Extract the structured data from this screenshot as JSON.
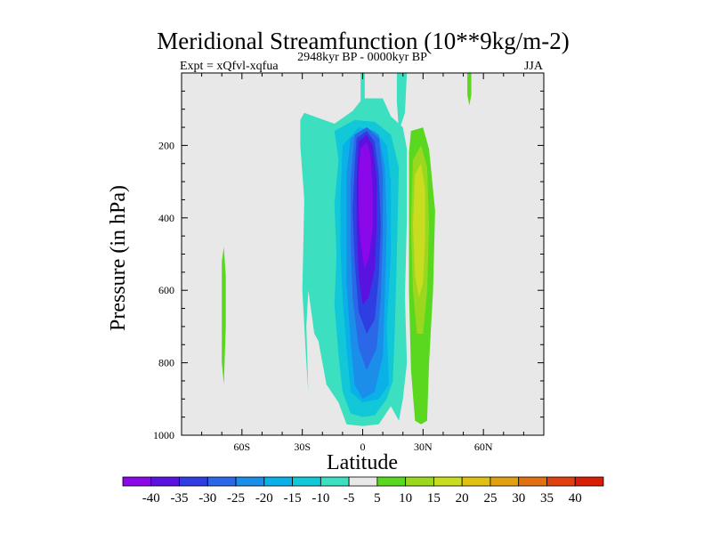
{
  "chart_data": {
    "type": "contour",
    "title": "Meridional Streamfunction (10**9kg/m-2)",
    "left_label": "Expt = xQfvl-xqfua",
    "center_label": "2948kyr BP - 0000kyr BP",
    "right_label": "JJA",
    "xlabel": "Latitude",
    "ylabel": "Pressure (in hPa)",
    "xlim": [
      -90,
      90
    ],
    "ylim": [
      0,
      1000
    ],
    "y_inverted": true,
    "x_ticks": [
      {
        "value": -60,
        "label": "60S"
      },
      {
        "value": -30,
        "label": "30S"
      },
      {
        "value": 0,
        "label": "0"
      },
      {
        "value": 30,
        "label": "30N"
      },
      {
        "value": 60,
        "label": "60N"
      }
    ],
    "y_ticks": [
      {
        "value": 200,
        "label": "200"
      },
      {
        "value": 400,
        "label": "400"
      },
      {
        "value": 600,
        "label": "600"
      },
      {
        "value": 800,
        "label": "800"
      },
      {
        "value": 1000,
        "label": "1000"
      }
    ],
    "colorbar": {
      "levels": [
        "-40",
        "-35",
        "-30",
        "-25",
        "-20",
        "-15",
        "-10",
        "-5",
        "5",
        "10",
        "15",
        "20",
        "25",
        "30",
        "35",
        "40"
      ],
      "colors": [
        "#8b08e8",
        "#5a12e0",
        "#2f3ee0",
        "#2a68e8",
        "#1a8ee8",
        "#0ab0e8",
        "#12c8d8",
        "#3cdfc0",
        "#e8e8e8",
        "#5ad820",
        "#9ad820",
        "#c8dc20",
        "#e0c010",
        "#e0a010",
        "#e07010",
        "#e04010",
        "#d81e05"
      ]
    },
    "regions": [
      {
        "name": "band-mid-60S-weak-positive",
        "level_index": 9,
        "points": [
          [
            -69,
            480
          ],
          [
            -68,
            560
          ],
          [
            -68,
            700
          ],
          [
            -69,
            860
          ],
          [
            -70,
            800
          ],
          [
            -70,
            600
          ],
          [
            -70,
            520
          ]
        ]
      },
      {
        "name": "band-north-narrow-positive",
        "level_index": 9,
        "points": [
          [
            52,
            0
          ],
          [
            54,
            0
          ],
          [
            54,
            60
          ],
          [
            53,
            90
          ],
          [
            52,
            60
          ]
        ]
      },
      {
        "name": "band-upper-left-neg-narrow",
        "level_index": 7,
        "points": [
          [
            -1,
            0
          ],
          [
            1,
            0
          ],
          [
            1,
            80
          ],
          [
            -1,
            80
          ]
        ]
      },
      {
        "name": "band-upper-right-neg-narrow",
        "level_index": 7,
        "points": [
          [
            17,
            0
          ],
          [
            22,
            0
          ],
          [
            21,
            110
          ],
          [
            18,
            160
          ],
          [
            17,
            80
          ]
        ]
      },
      {
        "name": "cell-weak-neg-outer",
        "level_index": 7,
        "points": [
          [
            -29,
            110
          ],
          [
            -14,
            140
          ],
          [
            -5,
            105
          ],
          [
            0,
            70
          ],
          [
            10,
            70
          ],
          [
            14,
            120
          ],
          [
            20,
            150
          ],
          [
            22,
            210
          ],
          [
            22,
            400
          ],
          [
            21,
            620
          ],
          [
            22,
            800
          ],
          [
            20,
            900
          ],
          [
            18,
            960
          ],
          [
            14,
            920
          ],
          [
            8,
            970
          ],
          [
            0,
            975
          ],
          [
            -8,
            970
          ],
          [
            -12,
            910
          ],
          [
            -18,
            860
          ],
          [
            -22,
            740
          ],
          [
            -24,
            720
          ],
          [
            -26,
            640
          ],
          [
            -27,
            600
          ],
          [
            -28,
            700
          ],
          [
            -27,
            880
          ],
          [
            -28,
            800
          ],
          [
            -30,
            600
          ],
          [
            -29,
            350
          ],
          [
            -31,
            200
          ],
          [
            -31,
            130
          ]
        ]
      },
      {
        "name": "cell-neg-10",
        "level_index": 6,
        "points": [
          [
            -14,
            160
          ],
          [
            -4,
            130
          ],
          [
            6,
            135
          ],
          [
            14,
            170
          ],
          [
            18,
            260
          ],
          [
            17,
            500
          ],
          [
            16,
            700
          ],
          [
            15,
            850
          ],
          [
            12,
            900
          ],
          [
            6,
            945
          ],
          [
            0,
            950
          ],
          [
            -6,
            940
          ],
          [
            -10,
            880
          ],
          [
            -12,
            780
          ],
          [
            -14,
            640
          ],
          [
            -13,
            500
          ],
          [
            -14,
            360
          ],
          [
            -12,
            240
          ]
        ]
      },
      {
        "name": "cell-neg-15",
        "level_index": 5,
        "points": [
          [
            -10,
            200
          ],
          [
            -2,
            150
          ],
          [
            6,
            160
          ],
          [
            12,
            200
          ],
          [
            14,
            300
          ],
          [
            14,
            500
          ],
          [
            12,
            700
          ],
          [
            13,
            860
          ],
          [
            8,
            900
          ],
          [
            0,
            910
          ],
          [
            -6,
            880
          ],
          [
            -8,
            760
          ],
          [
            -10,
            620
          ],
          [
            -11,
            480
          ],
          [
            -11,
            340
          ]
        ]
      },
      {
        "name": "cell-neg-20",
        "level_index": 4,
        "points": [
          [
            -6,
            180
          ],
          [
            2,
            150
          ],
          [
            8,
            170
          ],
          [
            11,
            260
          ],
          [
            12,
            420
          ],
          [
            11,
            620
          ],
          [
            10,
            780
          ],
          [
            6,
            880
          ],
          [
            0,
            900
          ],
          [
            -4,
            860
          ],
          [
            -6,
            740
          ],
          [
            -8,
            580
          ],
          [
            -8,
            420
          ],
          [
            -8,
            280
          ]
        ]
      },
      {
        "name": "cell-neg-25",
        "level_index": 3,
        "points": [
          [
            -4,
            170
          ],
          [
            2,
            150
          ],
          [
            8,
            180
          ],
          [
            10,
            280
          ],
          [
            10,
            440
          ],
          [
            9,
            620
          ],
          [
            7,
            760
          ],
          [
            2,
            820
          ],
          [
            -2,
            760
          ],
          [
            -5,
            620
          ],
          [
            -6,
            460
          ],
          [
            -6,
            300
          ]
        ]
      },
      {
        "name": "cell-neg-30",
        "level_index": 2,
        "points": [
          [
            -3,
            180
          ],
          [
            2,
            160
          ],
          [
            6,
            190
          ],
          [
            8,
            280
          ],
          [
            9,
            420
          ],
          [
            8,
            560
          ],
          [
            6,
            680
          ],
          [
            2,
            720
          ],
          [
            -2,
            660
          ],
          [
            -4,
            520
          ],
          [
            -5,
            380
          ],
          [
            -4,
            260
          ]
        ]
      },
      {
        "name": "cell-neg-35",
        "level_index": 1,
        "points": [
          [
            -2,
            190
          ],
          [
            2,
            170
          ],
          [
            5,
            200
          ],
          [
            7,
            290
          ],
          [
            7,
            420
          ],
          [
            6,
            540
          ],
          [
            3,
            620
          ],
          [
            0,
            640
          ],
          [
            -2,
            560
          ],
          [
            -3,
            420
          ],
          [
            -3,
            300
          ]
        ]
      },
      {
        "name": "cell-neg-40",
        "level_index": 0,
        "points": [
          [
            -1,
            210
          ],
          [
            2,
            190
          ],
          [
            4,
            230
          ],
          [
            5,
            320
          ],
          [
            5,
            430
          ],
          [
            3,
            510
          ],
          [
            1,
            540
          ],
          [
            -1,
            470
          ],
          [
            -2,
            380
          ],
          [
            -2,
            280
          ]
        ]
      },
      {
        "name": "cell-pos-5",
        "level_index": 9,
        "points": [
          [
            24,
            160
          ],
          [
            30,
            150
          ],
          [
            33,
            210
          ],
          [
            36,
            380
          ],
          [
            35,
            600
          ],
          [
            33,
            800
          ],
          [
            32,
            960
          ],
          [
            29,
            970
          ],
          [
            26,
            960
          ],
          [
            24,
            820
          ],
          [
            23,
            600
          ],
          [
            23,
            380
          ],
          [
            23,
            220
          ]
        ]
      },
      {
        "name": "cell-pos-10",
        "level_index": 10,
        "points": [
          [
            25,
            240
          ],
          [
            29,
            200
          ],
          [
            32,
            260
          ],
          [
            33,
            420
          ],
          [
            32,
            600
          ],
          [
            30,
            720
          ],
          [
            27,
            720
          ],
          [
            25,
            600
          ],
          [
            24,
            420
          ]
        ]
      },
      {
        "name": "cell-pos-15",
        "level_index": 11,
        "points": [
          [
            26,
            280
          ],
          [
            29,
            250
          ],
          [
            31,
            320
          ],
          [
            31,
            460
          ],
          [
            30,
            580
          ],
          [
            28,
            620
          ],
          [
            26,
            560
          ],
          [
            25,
            420
          ]
        ]
      }
    ]
  }
}
